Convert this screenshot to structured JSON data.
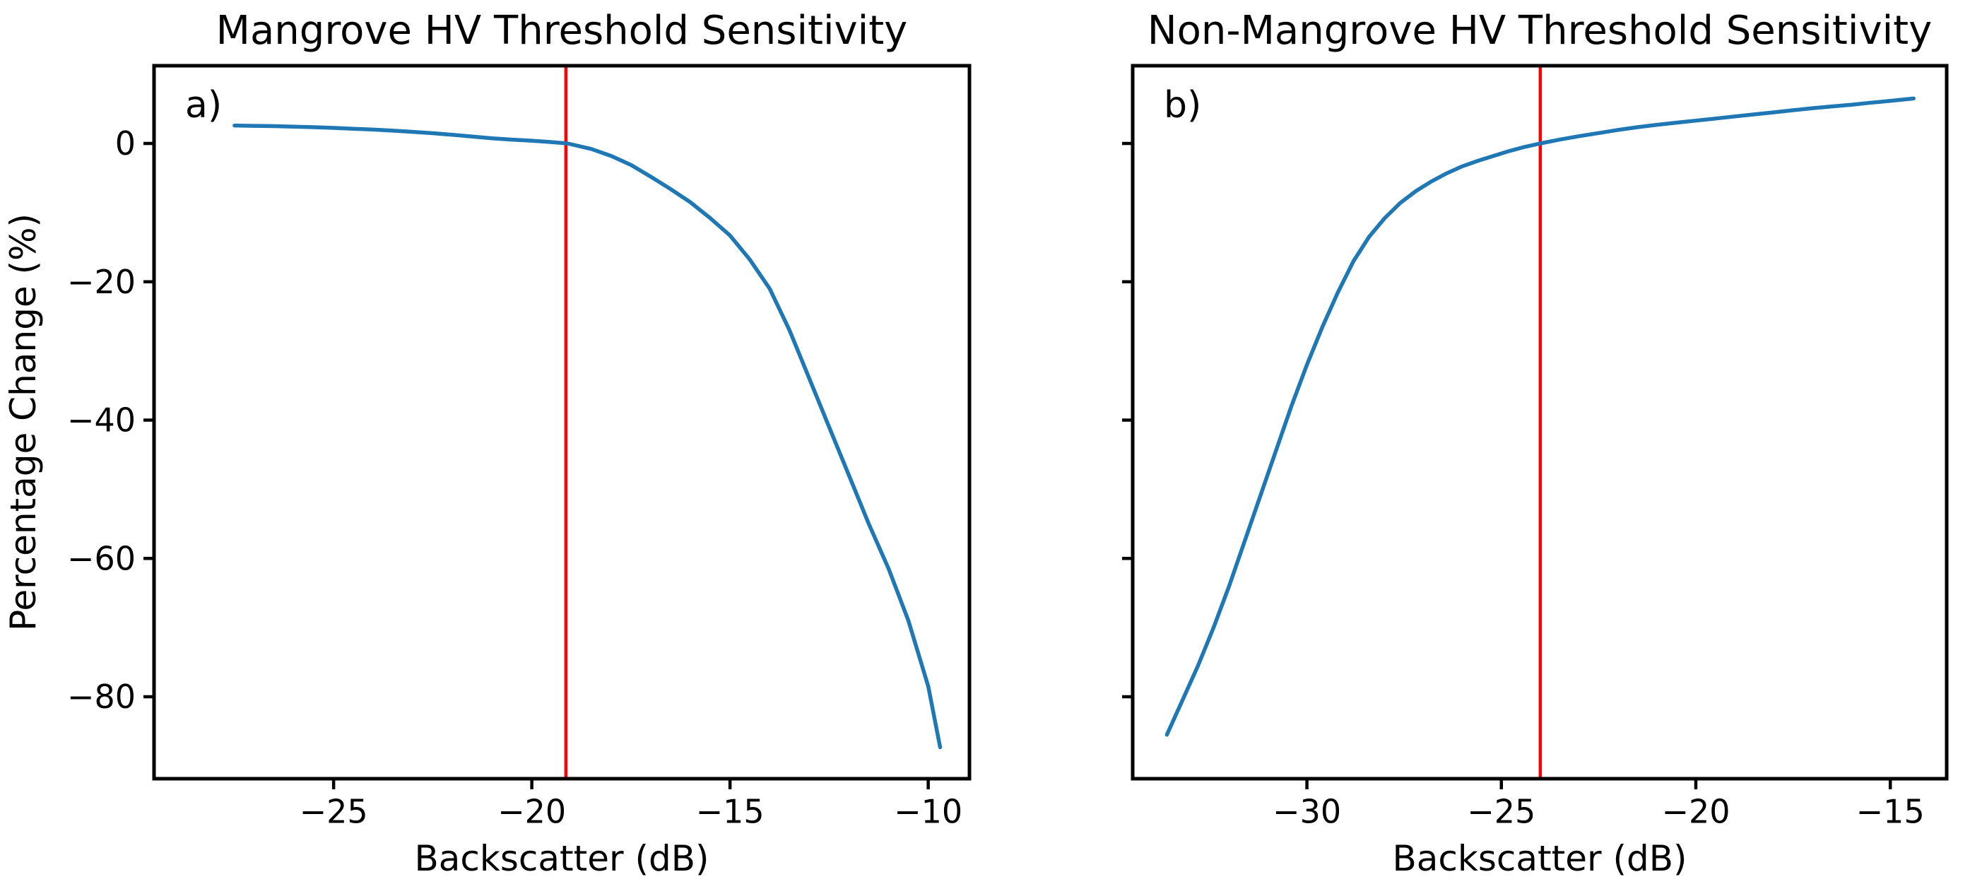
{
  "figure": {
    "background": "#ffffff",
    "shared_ylabel": "Percentage Change (%)",
    "colors": {
      "curve": "#1f77b4",
      "threshold": "#ff0000",
      "axis": "#000000",
      "text": "#000000"
    }
  },
  "chart_data": [
    {
      "type": "line",
      "panel_id": "a",
      "letter_label": "a)",
      "title": "Mangrove HV Threshold Sensitivity",
      "xlabel": "Backscatter (dB)",
      "ylabel": "Percentage Change (%)",
      "xlim": [
        -29.53,
        -8.96
      ],
      "ylim": [
        -91.85,
        11.24
      ],
      "xticks": [
        -25,
        -20,
        -15,
        -10
      ],
      "yticks": [
        0,
        -20,
        -40,
        -60,
        -80
      ],
      "ytick_labels_shown": true,
      "grid": false,
      "legend": null,
      "threshold_x": -19.14,
      "threshold_color": "#ff0000",
      "series": [
        {
          "name": "mangrove-percentage-change",
          "color": "#1f77b4",
          "x": [
            -27.5,
            -27.0,
            -26.5,
            -26.0,
            -25.5,
            -25.0,
            -24.5,
            -24.0,
            -23.5,
            -23.0,
            -22.5,
            -22.0,
            -21.5,
            -21.0,
            -20.5,
            -20.0,
            -19.5,
            -19.1,
            -18.5,
            -18.0,
            -17.5,
            -17.0,
            -16.5,
            -16.0,
            -15.5,
            -15.0,
            -14.5,
            -14.0,
            -13.5,
            -13.0,
            -12.5,
            -12.0,
            -11.5,
            -11.0,
            -10.5,
            -10.0,
            -9.7
          ],
          "y": [
            2.6,
            2.55,
            2.5,
            2.43,
            2.35,
            2.25,
            2.13,
            2.0,
            1.85,
            1.68,
            1.48,
            1.25,
            1.0,
            0.75,
            0.55,
            0.4,
            0.2,
            0.0,
            -0.8,
            -1.8,
            -3.1,
            -4.8,
            -6.6,
            -8.5,
            -10.8,
            -13.3,
            -16.8,
            -21.0,
            -27.0,
            -34.0,
            -41.0,
            -48.0,
            -55.0,
            -61.5,
            -69.0,
            -78.5,
            -87.3
          ]
        }
      ]
    },
    {
      "type": "line",
      "panel_id": "b",
      "letter_label": "b)",
      "title": "Non-Mangrove HV Threshold Sensitivity",
      "xlabel": "Backscatter (dB)",
      "ylabel": "",
      "xlim": [
        -34.48,
        -13.55
      ],
      "ylim": [
        -91.85,
        11.24
      ],
      "xticks": [
        -30,
        -25,
        -20,
        -15
      ],
      "yticks": [
        0,
        -20,
        -40,
        -60,
        -80
      ],
      "ytick_labels_shown": false,
      "grid": false,
      "legend": null,
      "threshold_x": -24.0,
      "threshold_color": "#ff0000",
      "series": [
        {
          "name": "non-mangrove-percentage-change",
          "color": "#1f77b4",
          "x": [
            -33.6,
            -33.2,
            -32.8,
            -32.4,
            -32.0,
            -31.6,
            -31.2,
            -30.8,
            -30.4,
            -30.0,
            -29.6,
            -29.2,
            -28.8,
            -28.4,
            -28.0,
            -27.6,
            -27.2,
            -26.8,
            -26.4,
            -26.0,
            -25.6,
            -25.2,
            -24.8,
            -24.4,
            -24.0,
            -23.5,
            -23.0,
            -22.5,
            -22.0,
            -21.5,
            -21.0,
            -20.5,
            -20.0,
            -19.5,
            -19.0,
            -18.5,
            -18.0,
            -17.5,
            -17.0,
            -16.5,
            -16.0,
            -15.5,
            -15.0,
            -14.4
          ],
          "y": [
            -85.5,
            -80.5,
            -75.5,
            -70.0,
            -64.0,
            -57.5,
            -51.0,
            -44.5,
            -38.0,
            -32.0,
            -26.5,
            -21.5,
            -17.0,
            -13.5,
            -10.8,
            -8.6,
            -6.9,
            -5.5,
            -4.3,
            -3.3,
            -2.5,
            -1.8,
            -1.1,
            -0.5,
            0.0,
            0.55,
            1.05,
            1.5,
            1.95,
            2.35,
            2.7,
            3.0,
            3.3,
            3.6,
            3.9,
            4.2,
            4.5,
            4.8,
            5.1,
            5.35,
            5.6,
            5.9,
            6.15,
            6.5
          ]
        }
      ]
    }
  ]
}
